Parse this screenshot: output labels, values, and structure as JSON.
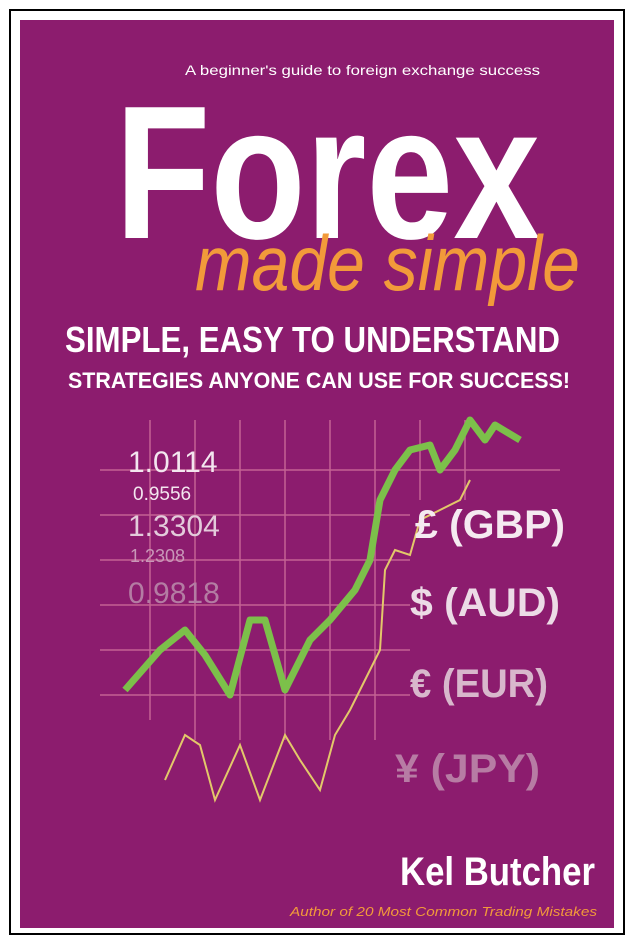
{
  "cover": {
    "tagline": "A beginner's guide to foreign exchange success",
    "title": "Forex",
    "subtitle": "made simple",
    "headline": "SIMPLE, EASY TO UNDERSTAND",
    "subheadline": "STRATEGIES ANYONE CAN USE FOR SUCCESS!",
    "rates": [
      "1.0114",
      "0.9556",
      "1.3304",
      "1.2308",
      "0.9818"
    ],
    "currencies": [
      "£ (GBP)",
      "$ (AUD)",
      "€ (EUR)",
      "¥ (JPY)"
    ],
    "author": "Kel Butcher",
    "author_note_prefix": "Author of",
    "author_note_book": "20 Most Common Trading Mistakes"
  }
}
